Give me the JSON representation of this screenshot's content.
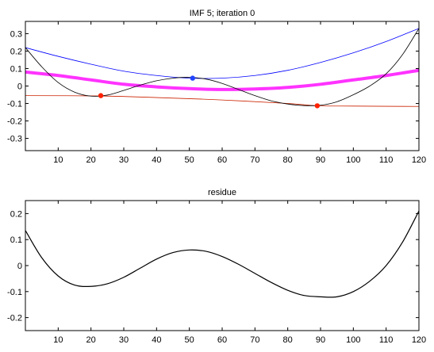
{
  "chart_data": [
    {
      "type": "line",
      "title": "IMF 5;   iteration 0",
      "xlim": [
        0,
        120
      ],
      "ylim": [
        -0.37,
        0.37
      ],
      "xticks": [
        10,
        20,
        30,
        40,
        50,
        60,
        70,
        80,
        90,
        100,
        110,
        120
      ],
      "yticks": [
        -0.3,
        -0.2,
        -0.1,
        0,
        0.1,
        0.2,
        0.3
      ],
      "ytick_labels": [
        "-0.3",
        "-0.2",
        "-0.1",
        "0",
        "0.1",
        "0.2",
        "0.3"
      ],
      "grid": false,
      "series": [
        {
          "color": "#0000ff",
          "line_width": 0.8,
          "x": [
            0,
            10,
            20,
            30,
            40,
            50,
            60,
            70,
            80,
            90,
            100,
            110,
            120
          ],
          "y": [
            0.22,
            0.17,
            0.125,
            0.085,
            0.06,
            0.045,
            0.045,
            0.06,
            0.09,
            0.135,
            0.19,
            0.255,
            0.33
          ]
        },
        {
          "color": "#cc2200",
          "line_width": 0.8,
          "x": [
            0,
            23,
            40,
            60,
            80,
            89,
            100,
            120
          ],
          "y": [
            -0.055,
            -0.057,
            -0.066,
            -0.08,
            -0.1,
            -0.113,
            -0.115,
            -0.117
          ]
        },
        {
          "color": "#ff33ff",
          "line_width": 4,
          "x": [
            0,
            10,
            20,
            30,
            40,
            50,
            60,
            70,
            80,
            90,
            100,
            110,
            120
          ],
          "y": [
            0.08,
            0.06,
            0.035,
            0.01,
            -0.005,
            -0.015,
            -0.02,
            -0.017,
            -0.008,
            0.01,
            0.035,
            0.06,
            0.09
          ]
        },
        {
          "color": "#000000",
          "line_width": 0.8,
          "x": [
            0,
            5,
            10,
            15,
            20,
            25,
            30,
            35,
            40,
            45,
            50,
            55,
            60,
            65,
            70,
            75,
            80,
            85,
            90,
            95,
            100,
            105,
            110,
            115,
            120
          ],
          "y": [
            0.22,
            0.11,
            0.02,
            -0.035,
            -0.058,
            -0.052,
            -0.025,
            0.005,
            0.03,
            0.045,
            0.05,
            0.04,
            0.015,
            -0.02,
            -0.055,
            -0.085,
            -0.103,
            -0.112,
            -0.11,
            -0.09,
            -0.05,
            0.0,
            0.07,
            0.18,
            0.33
          ]
        }
      ],
      "markers": [
        {
          "x": 23,
          "y": -0.055,
          "color": "#ff2200"
        },
        {
          "x": 51,
          "y": 0.045,
          "color": "#2244ff"
        },
        {
          "x": 89,
          "y": -0.113,
          "color": "#ff2200"
        }
      ]
    },
    {
      "type": "line",
      "title": "residue",
      "xlim": [
        0,
        120
      ],
      "ylim": [
        -0.25,
        0.25
      ],
      "xticks": [
        10,
        20,
        30,
        40,
        50,
        60,
        70,
        80,
        90,
        100,
        110,
        120
      ],
      "yticks": [
        -0.2,
        -0.1,
        0,
        0.1,
        0.2
      ],
      "ytick_labels": [
        "-0.2",
        "-0.1",
        "0",
        "0.1",
        "0.2"
      ],
      "grid": false,
      "series": [
        {
          "color": "#000000",
          "line_width": 1.2,
          "x": [
            0,
            5,
            10,
            15,
            20,
            25,
            30,
            35,
            40,
            45,
            50,
            55,
            60,
            65,
            70,
            75,
            80,
            85,
            90,
            95,
            100,
            105,
            110,
            115,
            120
          ],
          "y": [
            0.135,
            0.03,
            -0.04,
            -0.075,
            -0.08,
            -0.07,
            -0.045,
            -0.01,
            0.025,
            0.05,
            0.06,
            0.055,
            0.035,
            0.005,
            -0.03,
            -0.065,
            -0.095,
            -0.115,
            -0.12,
            -0.12,
            -0.1,
            -0.06,
            0.0,
            0.09,
            0.21
          ]
        }
      ],
      "markers": []
    }
  ]
}
